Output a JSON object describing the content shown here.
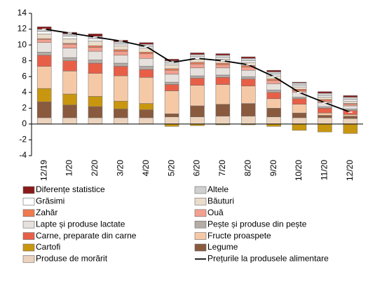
{
  "chart_data": {
    "type": "stacked-bar-line",
    "categories": [
      "12/19",
      "1/20",
      "2/20",
      "3/20",
      "4/20",
      "5/20",
      "6/20",
      "7/20",
      "8/20",
      "9/20",
      "10/20",
      "11/20",
      "12/20"
    ],
    "ylim": [
      -4,
      14
    ],
    "yticks": [
      -4,
      -2,
      0,
      2,
      4,
      6,
      8,
      10,
      12,
      14
    ],
    "series": [
      {
        "name": "Produse de morărit",
        "color": "#ecd3bd",
        "values": [
          0.8,
          0.8,
          0.8,
          0.8,
          0.8,
          0.9,
          0.9,
          1.0,
          1.0,
          0.9,
          0.8,
          0.8,
          0.7
        ]
      },
      {
        "name": "Legume",
        "color": "#8a5a3e",
        "values": [
          2.0,
          1.6,
          1.4,
          1.1,
          1.0,
          0.4,
          1.4,
          1.5,
          1.6,
          1.1,
          0.6,
          0.3,
          0.3
        ]
      },
      {
        "name": "Cartofi",
        "color": "#c9960f",
        "values": [
          1.7,
          1.4,
          1.3,
          1.0,
          0.8,
          -0.3,
          -0.2,
          -0.1,
          -0.1,
          -0.3,
          -0.8,
          -1.0,
          -1.2
        ]
      },
      {
        "name": "Fructe proaspete",
        "color": "#f6c9a6",
        "values": [
          2.8,
          2.9,
          2.9,
          3.2,
          3.3,
          2.9,
          2.6,
          2.5,
          2.2,
          1.2,
          1.1,
          0.3,
          0.2
        ]
      },
      {
        "name": "Carne, preparate din carne",
        "color": "#e85f48",
        "values": [
          1.4,
          1.3,
          1.3,
          1.2,
          1.0,
          0.8,
          0.9,
          0.9,
          0.9,
          0.8,
          0.7,
          0.6,
          0.5
        ]
      },
      {
        "name": "Pește și produse din pește",
        "color": "#b4aca6",
        "values": [
          0.4,
          0.4,
          0.4,
          0.4,
          0.4,
          0.3,
          0.3,
          0.3,
          0.3,
          0.3,
          0.2,
          0.2,
          0.2
        ]
      },
      {
        "name": "Lapte și produse lactate",
        "color": "#e6e1dc",
        "values": [
          1.2,
          1.2,
          1.1,
          1.0,
          1.0,
          1.0,
          1.0,
          0.9,
          0.8,
          0.8,
          0.6,
          0.5,
          0.4
        ]
      },
      {
        "name": "Ouă",
        "color": "#f2a090",
        "values": [
          0.4,
          0.5,
          0.5,
          0.5,
          0.6,
          0.5,
          0.5,
          0.4,
          0.4,
          0.4,
          0.2,
          0.2,
          0.2
        ]
      },
      {
        "name": "Zahăr",
        "color": "#f07a4e",
        "values": [
          0.1,
          0.1,
          0.2,
          0.2,
          0.2,
          0.2,
          0.2,
          0.2,
          0.2,
          0.2,
          0.2,
          0.2,
          0.1
        ]
      },
      {
        "name": "Băuturi",
        "color": "#eadccb",
        "values": [
          0.6,
          0.6,
          0.6,
          0.5,
          0.5,
          0.5,
          0.5,
          0.5,
          0.4,
          0.4,
          0.3,
          0.3,
          0.3
        ]
      },
      {
        "name": "Grăsimi",
        "color": "#ffffff",
        "values": [
          0.3,
          0.3,
          0.3,
          0.2,
          0.2,
          0.2,
          0.2,
          0.2,
          0.2,
          0.2,
          0.2,
          0.2,
          0.2
        ]
      },
      {
        "name": "Altele",
        "color": "#cfcfcf",
        "values": [
          0.3,
          0.3,
          0.3,
          0.3,
          0.3,
          0.3,
          0.3,
          0.3,
          0.3,
          0.3,
          0.3,
          0.3,
          0.3
        ]
      },
      {
        "name": "Diferențe statistice",
        "color": "#8b1a1a",
        "values": [
          0.3,
          0.2,
          0.3,
          0.2,
          0.2,
          0.2,
          0.2,
          0.2,
          0.2,
          0.2,
          0.1,
          0.2,
          0.2
        ]
      }
    ],
    "line": {
      "name": "Prețurile la produsele alimentare",
      "color": "#000000",
      "values": [
        12.0,
        11.5,
        11.0,
        10.5,
        9.8,
        7.8,
        8.3,
        8.0,
        7.5,
        6.0,
        4.0,
        2.7,
        1.5
      ]
    },
    "legend_order": [
      12,
      11,
      10,
      9,
      8,
      7,
      6,
      5,
      4,
      3,
      2,
      1,
      0
    ]
  }
}
